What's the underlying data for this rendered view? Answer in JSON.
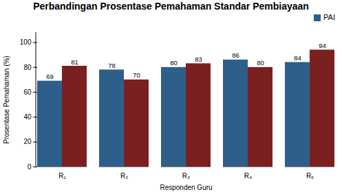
{
  "chart_data": {
    "type": "bar",
    "title": "Perbandingan Prosentase Pemahaman Standar Pembiayaan",
    "xlabel": "Responden Guru",
    "ylabel": "Prosentase Pemahaman (%)",
    "categories": [
      "R₁",
      "R₂",
      "R₃",
      "R₄",
      "R₅"
    ],
    "series": [
      {
        "name": "PAI",
        "color": "#2E5F8A",
        "values": [
          69,
          78,
          80,
          86,
          84
        ]
      },
      {
        "color": "#7B2020",
        "values": [
          81,
          70,
          83,
          80,
          94
        ]
      }
    ],
    "ylim": [
      0,
      108
    ],
    "yticks": [
      0,
      20,
      40,
      60,
      80,
      100
    ],
    "grid": false,
    "legend": "upper right",
    "data_labels": true
  }
}
